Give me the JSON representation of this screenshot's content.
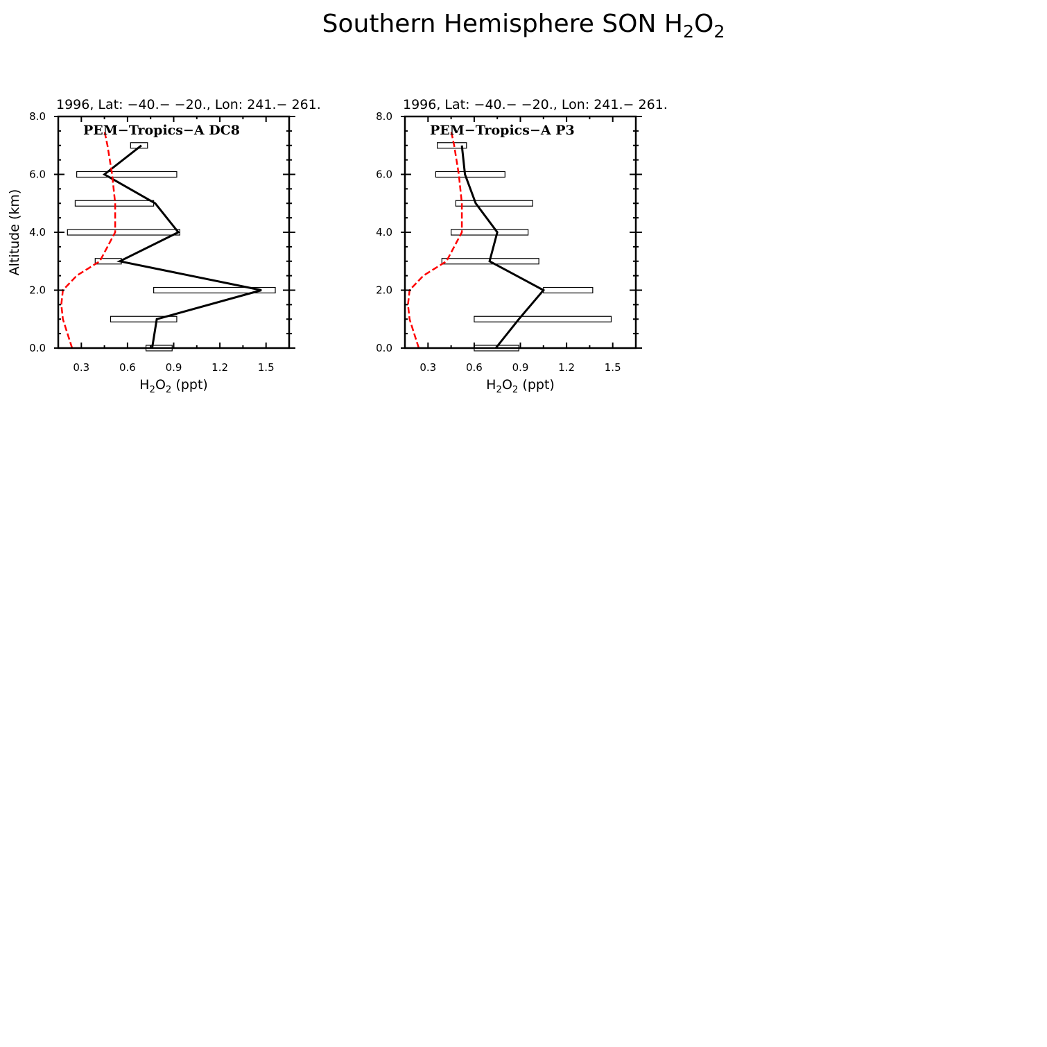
{
  "figure": {
    "title_main": "Southern Hemisphere SON H",
    "title_sub1": "2",
    "title_mid": "O",
    "title_sub2": "2"
  },
  "chart_data": [
    {
      "type": "line",
      "header": "1996, Lat: −40.− −20., Lon: 241.− 261.",
      "title": "PEM−Tropics−A DC8",
      "ylabel": "Altitude (km)",
      "xlabel": {
        "main": "H",
        "s1": "2",
        "mid": "O",
        "s2": "2",
        "rest": " (ppt)"
      },
      "xlim": [
        0.15,
        1.65
      ],
      "ylim": [
        0,
        8
      ],
      "xticks": [
        0.3,
        0.6,
        0.9,
        1.2,
        1.5
      ],
      "xtick_labels": [
        "0.3",
        "0.6",
        "0.9",
        "1.2",
        "1.5"
      ],
      "yticks": [
        0,
        2,
        4,
        6,
        8
      ],
      "ytick_labels": [
        "0.0",
        "2.0",
        "4.0",
        "6.0",
        "8.0"
      ],
      "grid": false,
      "series": [
        {
          "kind": "observed-median",
          "color": "#000000",
          "style": "solid",
          "x": [
            0.76,
            0.79,
            1.47,
            0.55,
            0.93,
            0.78,
            0.45,
            0.69
          ],
          "y": [
            0,
            1,
            2,
            3,
            4,
            5,
            6,
            7
          ]
        },
        {
          "kind": "model",
          "color": "#ff0000",
          "style": "dashed",
          "x": [
            0.24,
            0.21,
            0.18,
            0.17,
            0.18,
            0.27,
            0.42,
            0.47,
            0.52,
            0.52,
            0.52,
            0.5,
            0.47,
            0.45
          ],
          "y": [
            0,
            0.5,
            1,
            1.5,
            2,
            2.5,
            3,
            3.5,
            4,
            4.5,
            5,
            6,
            7,
            7.5
          ]
        }
      ],
      "boxes": [
        {
          "y": 0,
          "x_low": 0.72,
          "x_high": 0.89
        },
        {
          "y": 1,
          "x_low": 0.49,
          "x_high": 0.92
        },
        {
          "y": 2,
          "x_low": 0.77,
          "x_high": 1.56
        },
        {
          "y": 3,
          "x_low": 0.39,
          "x_high": 0.56
        },
        {
          "y": 4,
          "x_low": 0.21,
          "x_high": 0.94
        },
        {
          "y": 5,
          "x_low": 0.26,
          "x_high": 0.77
        },
        {
          "y": 6,
          "x_low": 0.27,
          "x_high": 0.92
        },
        {
          "y": 7,
          "x_low": 0.62,
          "x_high": 0.73
        }
      ]
    },
    {
      "type": "line",
      "header": "1996, Lat: −40.− −20., Lon: 241.− 261.",
      "title": "PEM−Tropics−A P3",
      "ylabel": "",
      "xlabel": {
        "main": "H",
        "s1": "2",
        "mid": "O",
        "s2": "2",
        "rest": " (ppt)"
      },
      "xlim": [
        0.15,
        1.65
      ],
      "ylim": [
        0,
        8
      ],
      "xticks": [
        0.3,
        0.6,
        0.9,
        1.2,
        1.5
      ],
      "xtick_labels": [
        "0.3",
        "0.6",
        "0.9",
        "1.2",
        "1.5"
      ],
      "yticks": [
        0,
        2,
        4,
        6,
        8
      ],
      "ytick_labels": [
        "0.0",
        "2.0",
        "4.0",
        "6.0",
        "8.0"
      ],
      "grid": false,
      "series": [
        {
          "kind": "observed-median",
          "color": "#000000",
          "style": "solid",
          "x": [
            0.74,
            0.89,
            1.05,
            0.7,
            0.75,
            0.61,
            0.54,
            0.52
          ],
          "y": [
            0,
            1,
            2,
            3,
            4,
            5,
            6,
            7
          ]
        },
        {
          "kind": "model",
          "color": "#ff0000",
          "style": "dashed",
          "x": [
            0.24,
            0.21,
            0.18,
            0.17,
            0.18,
            0.27,
            0.42,
            0.47,
            0.52,
            0.52,
            0.52,
            0.5,
            0.47,
            0.45
          ],
          "y": [
            0,
            0.5,
            1,
            1.5,
            2,
            2.5,
            3,
            3.5,
            4,
            4.5,
            5,
            6,
            7,
            7.5
          ]
        }
      ],
      "boxes": [
        {
          "y": 0,
          "x_low": 0.6,
          "x_high": 0.89
        },
        {
          "y": 1,
          "x_low": 0.6,
          "x_high": 1.49
        },
        {
          "y": 2,
          "x_low": 1.05,
          "x_high": 1.37
        },
        {
          "y": 3,
          "x_low": 0.39,
          "x_high": 1.02
        },
        {
          "y": 4,
          "x_low": 0.45,
          "x_high": 0.95
        },
        {
          "y": 5,
          "x_low": 0.48,
          "x_high": 0.98
        },
        {
          "y": 6,
          "x_low": 0.35,
          "x_high": 0.8
        },
        {
          "y": 7,
          "x_low": 0.36,
          "x_high": 0.55
        }
      ]
    }
  ]
}
